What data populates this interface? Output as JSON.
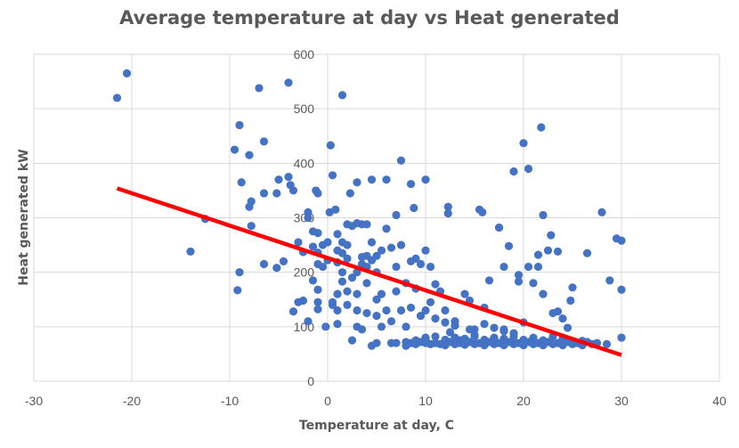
{
  "chart_data": {
    "type": "scatter",
    "title": "Average temperature at day vs Heat generated",
    "xlabel": "Temperature at day, C",
    "ylabel": "Heat generated kW",
    "xlim": [
      -30,
      40
    ],
    "ylim": [
      0,
      600
    ],
    "xticks": [
      -30,
      -20,
      -10,
      0,
      10,
      20,
      30,
      40
    ],
    "yticks": [
      0,
      100,
      200,
      300,
      400,
      500,
      600
    ],
    "grid": true,
    "legend": "none",
    "colors": {
      "points": "#4472C4",
      "trendline": "#FF0000",
      "grid": "#D9D9D9",
      "text": "#595959"
    },
    "trendline": {
      "x": [
        -21.5,
        30
      ],
      "y": [
        354,
        48
      ]
    },
    "points": [
      [
        -21.5,
        520
      ],
      [
        -20.5,
        565
      ],
      [
        -14,
        238
      ],
      [
        -12.5,
        298
      ],
      [
        -9.5,
        425
      ],
      [
        -9,
        470
      ],
      [
        -8.8,
        365
      ],
      [
        -9,
        200
      ],
      [
        -9.2,
        167
      ],
      [
        -8,
        415
      ],
      [
        -7.8,
        330
      ],
      [
        -8,
        320
      ],
      [
        -7.8,
        285
      ],
      [
        -7,
        538
      ],
      [
        -6.5,
        440
      ],
      [
        -6.5,
        345
      ],
      [
        -6.5,
        215
      ],
      [
        -5.2,
        345
      ],
      [
        -5.2,
        208
      ],
      [
        -5,
        370
      ],
      [
        -4.5,
        220
      ],
      [
        -4,
        375
      ],
      [
        -4,
        548
      ],
      [
        -3.8,
        360
      ],
      [
        -3.5,
        350
      ],
      [
        -3.5,
        128
      ],
      [
        -3,
        255
      ],
      [
        -3,
        145
      ],
      [
        -2.5,
        148
      ],
      [
        -2.5,
        237
      ],
      [
        -2,
        310
      ],
      [
        -2,
        300
      ],
      [
        -2,
        110
      ],
      [
        -1.5,
        275
      ],
      [
        -1.5,
        247
      ],
      [
        -1.5,
        185
      ],
      [
        -1.2,
        350
      ],
      [
        -1,
        345
      ],
      [
        -1,
        272
      ],
      [
        -1,
        236
      ],
      [
        -1,
        215
      ],
      [
        -1,
        168
      ],
      [
        -1,
        145
      ],
      [
        -1,
        132
      ],
      [
        -0.5,
        210
      ],
      [
        -0.5,
        250
      ],
      [
        -0.2,
        100
      ],
      [
        0,
        222
      ],
      [
        0,
        255
      ],
      [
        0.2,
        310
      ],
      [
        0.3,
        433
      ],
      [
        0.5,
        378
      ],
      [
        0.5,
        145
      ],
      [
        0.5,
        140
      ],
      [
        0.8,
        315
      ],
      [
        1,
        270
      ],
      [
        1,
        240
      ],
      [
        1,
        218
      ],
      [
        1,
        160
      ],
      [
        1,
        130
      ],
      [
        1,
        105
      ],
      [
        1.5,
        525
      ],
      [
        1.5,
        255
      ],
      [
        1.5,
        235
      ],
      [
        1.5,
        200
      ],
      [
        1.5,
        183
      ],
      [
        2,
        288
      ],
      [
        2,
        250
      ],
      [
        2,
        225
      ],
      [
        2,
        165
      ],
      [
        2,
        140
      ],
      [
        2.3,
        345
      ],
      [
        2.5,
        285
      ],
      [
        2.5,
        190
      ],
      [
        2.5,
        75
      ],
      [
        3,
        365
      ],
      [
        3,
        290
      ],
      [
        3,
        200
      ],
      [
        3,
        160
      ],
      [
        3,
        130
      ],
      [
        3,
        100
      ],
      [
        3.5,
        288
      ],
      [
        3.5,
        228
      ],
      [
        3.5,
        215
      ],
      [
        3.5,
        95
      ],
      [
        4,
        288
      ],
      [
        4,
        230
      ],
      [
        4,
        210
      ],
      [
        4,
        180
      ],
      [
        4,
        125
      ],
      [
        4.5,
        370
      ],
      [
        4.5,
        255
      ],
      [
        4.5,
        222
      ],
      [
        4.5,
        65
      ],
      [
        5,
        230
      ],
      [
        5,
        200
      ],
      [
        5,
        150
      ],
      [
        5,
        120
      ],
      [
        5,
        70
      ],
      [
        5.5,
        240
      ],
      [
        5.5,
        160
      ],
      [
        5.5,
        100
      ],
      [
        6,
        370
      ],
      [
        6,
        280
      ],
      [
        6,
        130
      ],
      [
        6.5,
        245
      ],
      [
        6.5,
        110
      ],
      [
        6.5,
        70
      ],
      [
        7,
        305
      ],
      [
        7,
        210
      ],
      [
        7,
        165
      ],
      [
        7,
        70
      ],
      [
        7.5,
        405
      ],
      [
        7.5,
        250
      ],
      [
        7.5,
        130
      ],
      [
        8,
        180
      ],
      [
        8,
        100
      ],
      [
        8,
        65
      ],
      [
        8.5,
        362
      ],
      [
        8.5,
        220
      ],
      [
        8.5,
        135
      ],
      [
        8.8,
        318
      ],
      [
        9,
        225
      ],
      [
        9,
        170
      ],
      [
        9,
        75
      ],
      [
        9.5,
        215
      ],
      [
        9.5,
        120
      ],
      [
        10,
        370
      ],
      [
        10,
        240
      ],
      [
        10,
        130
      ],
      [
        10,
        80
      ],
      [
        10.5,
        210
      ],
      [
        10.5,
        145
      ],
      [
        11,
        178
      ],
      [
        11,
        115
      ],
      [
        11.5,
        165
      ],
      [
        12,
        130
      ],
      [
        12,
        70
      ],
      [
        12.3,
        320
      ],
      [
        12.3,
        308
      ],
      [
        12.5,
        90
      ],
      [
        13,
        110
      ],
      [
        13.5,
        75
      ],
      [
        14,
        160
      ],
      [
        14.5,
        148
      ],
      [
        14.5,
        95
      ],
      [
        15,
        85
      ],
      [
        15.5,
        315
      ],
      [
        15.8,
        310
      ],
      [
        16,
        135
      ],
      [
        16.5,
        185
      ],
      [
        17,
        75
      ],
      [
        17.5,
        282
      ],
      [
        18,
        210
      ],
      [
        18,
        95
      ],
      [
        18.5,
        248
      ],
      [
        19,
        385
      ],
      [
        19,
        88
      ],
      [
        19.5,
        195
      ],
      [
        19.5,
        183
      ],
      [
        20,
        437
      ],
      [
        20,
        108
      ],
      [
        20.5,
        390
      ],
      [
        20.5,
        210
      ],
      [
        21,
        180
      ],
      [
        21.5,
        232
      ],
      [
        21.5,
        210
      ],
      [
        21.8,
        466
      ],
      [
        22,
        305
      ],
      [
        22,
        160
      ],
      [
        22.5,
        240
      ],
      [
        22.8,
        268
      ],
      [
        23,
        125
      ],
      [
        23.5,
        238
      ],
      [
        23.5,
        128
      ],
      [
        24,
        115
      ],
      [
        24.5,
        98
      ],
      [
        24.8,
        148
      ],
      [
        25,
        172
      ],
      [
        26.5,
        235
      ],
      [
        28,
        310
      ],
      [
        28.8,
        185
      ],
      [
        29.5,
        262
      ],
      [
        30,
        258
      ],
      [
        30,
        168
      ],
      [
        30,
        80
      ],
      [
        8,
        72
      ],
      [
        8.5,
        70
      ],
      [
        9,
        68
      ],
      [
        9.5,
        72
      ],
      [
        10,
        70
      ],
      [
        10.5,
        68
      ],
      [
        11,
        70
      ],
      [
        11.5,
        68
      ],
      [
        12,
        66
      ],
      [
        12.5,
        72
      ],
      [
        13,
        68
      ],
      [
        13.5,
        70
      ],
      [
        14,
        67
      ],
      [
        14.5,
        72
      ],
      [
        15,
        68
      ],
      [
        15.5,
        70
      ],
      [
        16,
        66
      ],
      [
        16.5,
        72
      ],
      [
        17,
        68
      ],
      [
        17.5,
        70
      ],
      [
        18,
        66
      ],
      [
        18.5,
        72
      ],
      [
        19,
        68
      ],
      [
        19.5,
        70
      ],
      [
        20,
        66
      ],
      [
        20.5,
        72
      ],
      [
        21,
        68
      ],
      [
        21.5,
        70
      ],
      [
        22,
        66
      ],
      [
        22.5,
        72
      ],
      [
        23,
        68
      ],
      [
        23.5,
        70
      ],
      [
        24,
        66
      ],
      [
        24.5,
        72
      ],
      [
        25,
        68
      ],
      [
        25.5,
        70
      ],
      [
        26,
        66
      ],
      [
        26.5,
        72
      ],
      [
        27,
        68
      ],
      [
        27.5,
        70
      ],
      [
        28.5,
        68
      ],
      [
        11,
        82
      ],
      [
        13,
        80
      ],
      [
        15,
        82
      ],
      [
        17,
        80
      ],
      [
        19,
        82
      ],
      [
        21,
        80
      ],
      [
        23,
        82
      ],
      [
        22,
        75
      ],
      [
        20,
        76
      ],
      [
        18,
        78
      ],
      [
        16,
        76
      ],
      [
        14,
        78
      ],
      [
        12,
        76
      ],
      [
        10,
        78
      ],
      [
        24,
        78
      ],
      [
        26,
        74
      ],
      [
        15,
        95
      ],
      [
        16,
        105
      ],
      [
        17,
        98
      ],
      [
        13,
        102
      ],
      [
        12,
        108
      ],
      [
        18,
        92
      ]
    ]
  }
}
